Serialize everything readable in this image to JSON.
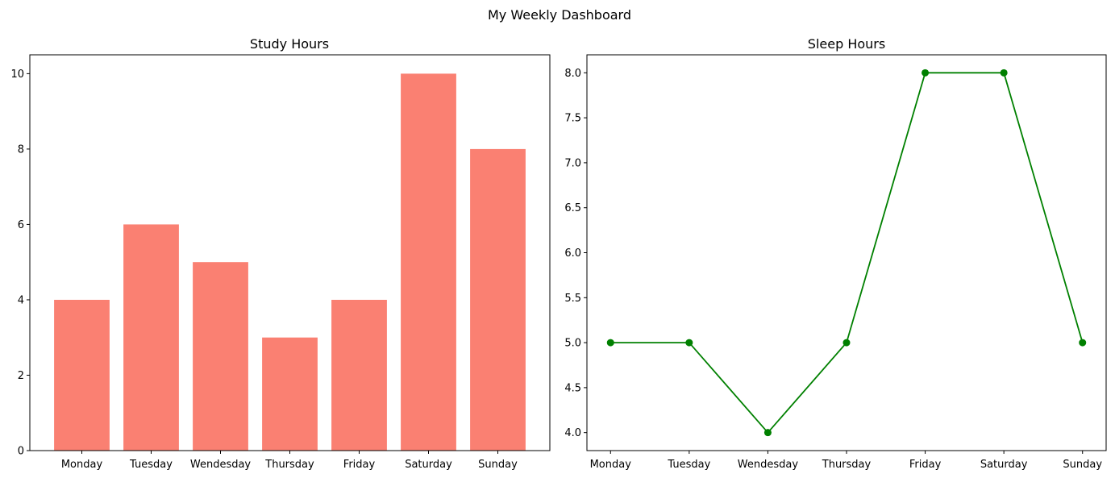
{
  "figure_title": "My Weekly Dashboard",
  "chart_data": [
    {
      "type": "bar",
      "title": "Study Hours",
      "xlabel": "",
      "ylabel": "",
      "categories": [
        "Monday",
        "Tuesday",
        "Wendesday",
        "Thursday",
        "Friday",
        "Saturday",
        "Sunday"
      ],
      "values": [
        4,
        6,
        5,
        3,
        4,
        10,
        8
      ],
      "ylim": [
        0,
        10.5
      ],
      "yticks": [
        0,
        2,
        4,
        6,
        8,
        10
      ],
      "grid": false,
      "color": "#fa8072"
    },
    {
      "type": "line",
      "title": "Sleep Hours",
      "xlabel": "",
      "ylabel": "",
      "categories": [
        "Monday",
        "Tuesday",
        "Wendesday",
        "Thursday",
        "Friday",
        "Saturday",
        "Sunday"
      ],
      "values": [
        5,
        5,
        4,
        5,
        8,
        8,
        5
      ],
      "ylim": [
        3.8,
        8.2
      ],
      "yticks": [
        4.0,
        4.5,
        5.0,
        5.5,
        6.0,
        6.5,
        7.0,
        7.5,
        8.0
      ],
      "marker": "circle",
      "grid": false,
      "color": "#008000"
    }
  ]
}
